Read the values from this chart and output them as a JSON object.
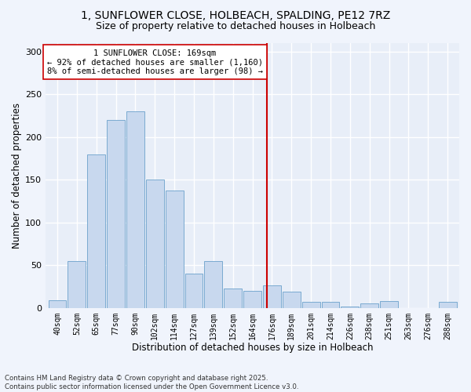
{
  "title_line1": "1, SUNFLOWER CLOSE, HOLBEACH, SPALDING, PE12 7RZ",
  "title_line2": "Size of property relative to detached houses in Holbeach",
  "xlabel": "Distribution of detached houses by size in Holbeach",
  "ylabel": "Number of detached properties",
  "categories": [
    "40sqm",
    "52sqm",
    "65sqm",
    "77sqm",
    "90sqm",
    "102sqm",
    "114sqm",
    "127sqm",
    "139sqm",
    "152sqm",
    "164sqm",
    "176sqm",
    "189sqm",
    "201sqm",
    "214sqm",
    "226sqm",
    "238sqm",
    "251sqm",
    "263sqm",
    "276sqm",
    "288sqm"
  ],
  "values": [
    9,
    55,
    180,
    220,
    230,
    150,
    137,
    40,
    55,
    23,
    20,
    26,
    19,
    7,
    7,
    2,
    5,
    8,
    0,
    0,
    7
  ],
  "bar_color": "#c8d8ee",
  "bar_edge_color": "#7aaad0",
  "vline_color": "#cc0000",
  "annotation_text": "1 SUNFLOWER CLOSE: 169sqm\n← 92% of detached houses are smaller (1,160)\n8% of semi-detached houses are larger (98) →",
  "background_color": "#e8eef8",
  "grid_color": "#ffffff",
  "fig_background": "#f0f4fc",
  "ylim": [
    0,
    310
  ],
  "yticks": [
    0,
    50,
    100,
    150,
    200,
    250,
    300
  ],
  "footer_text": "Contains HM Land Registry data © Crown copyright and database right 2025.\nContains public sector information licensed under the Open Government Licence v3.0."
}
